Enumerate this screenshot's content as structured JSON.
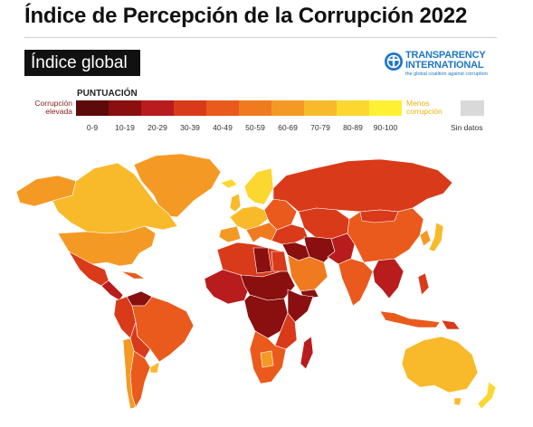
{
  "title": "Índice de Percepción de la Corrupción 2022",
  "badge": "Índice global",
  "org": {
    "name_line1": "TRANSPARENCY",
    "name_line2": "INTERNATIONAL",
    "tagline": "the global coalition against corruption",
    "brand_color": "#1f76c7"
  },
  "legend": {
    "heading": "PUNTUACIÓN",
    "high_corruption_line1": "Corrupción",
    "high_corruption_line2": "elevada",
    "low_corruption_line1": "Menos",
    "low_corruption_line2": "corrupción",
    "no_data": "Sin datos",
    "no_data_color": "#d9d9d9",
    "bins": [
      {
        "label": "0-9",
        "color": "#5c0a0a"
      },
      {
        "label": "10-19",
        "color": "#8a0f0f"
      },
      {
        "label": "20-29",
        "color": "#b81c1c"
      },
      {
        "label": "30-39",
        "color": "#d93a1a"
      },
      {
        "label": "40-49",
        "color": "#ea5a1c"
      },
      {
        "label": "50-59",
        "color": "#f07a1f"
      },
      {
        "label": "60-69",
        "color": "#f49a24"
      },
      {
        "label": "70-79",
        "color": "#f8ba2a"
      },
      {
        "label": "80-89",
        "color": "#fbd72f"
      },
      {
        "label": "90-100",
        "color": "#fff033"
      }
    ]
  }
}
